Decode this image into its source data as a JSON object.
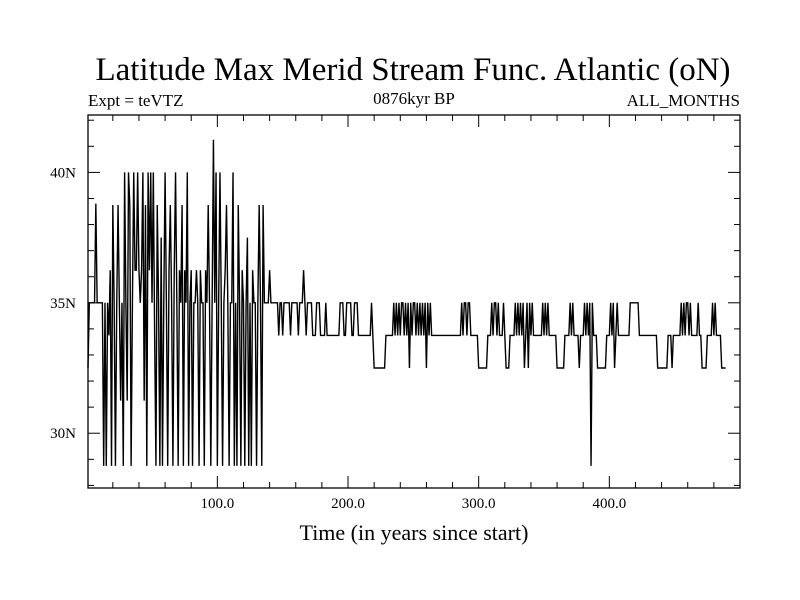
{
  "chart_data": {
    "type": "line",
    "title": "Latitude Max Merid Stream Func. Atlantic (oN)",
    "subtitle_left": "Expt = teVTZ",
    "subtitle_center": "0876kyr BP",
    "subtitle_right": "ALL_MONTHS",
    "xlabel": "Time (in years since start)",
    "ylabel": "",
    "xlim": [
      1,
      500
    ],
    "ylim": [
      27.9,
      42.2
    ],
    "x_ticks": [
      {
        "value": 100,
        "label": "100.0"
      },
      {
        "value": 200,
        "label": "200.0"
      },
      {
        "value": 300,
        "label": "300.0"
      },
      {
        "value": 400,
        "label": "400.0"
      }
    ],
    "y_ticks": [
      {
        "value": 30,
        "label": "30N"
      },
      {
        "value": 35,
        "label": "35N"
      },
      {
        "value": 40,
        "label": "40N"
      }
    ],
    "grid": false,
    "legend": "none",
    "colors": {
      "line": "#000000",
      "axes": "#000000",
      "background": "#ffffff"
    },
    "series": [
      {
        "values": [
          32.5,
          35.0,
          35.0,
          35.0,
          35.0,
          35.0,
          38.8,
          35.0,
          35.0,
          35.0,
          35.0,
          35.0,
          28.75,
          35.0,
          28.75,
          35.0,
          33.75,
          36.25,
          28.75,
          38.75,
          35.0,
          28.75,
          35.0,
          38.75,
          35.0,
          31.25,
          35.0,
          28.75,
          40.0,
          35.0,
          31.25,
          40.0,
          38.75,
          28.75,
          35.0,
          40.0,
          36.25,
          36.25,
          40.0,
          36.25,
          35.0,
          36.25,
          40.0,
          31.25,
          38.75,
          28.75,
          40.0,
          36.25,
          40.0,
          35.0,
          40.0,
          33.75,
          28.75,
          38.75,
          35.0,
          28.75,
          37.5,
          28.75,
          35.0,
          40.0,
          35.0,
          28.75,
          36.25,
          38.75,
          35.0,
          28.75,
          36.25,
          40.0,
          35.0,
          28.75,
          36.25,
          35.0,
          38.75,
          28.75,
          36.25,
          35.0,
          40.0,
          28.75,
          35.0,
          36.25,
          28.75,
          35.0,
          35.0,
          36.25,
          35.0,
          28.75,
          36.25,
          35.0,
          35.0,
          28.75,
          36.25,
          35.0,
          38.75,
          35.0,
          28.75,
          35.0,
          41.25,
          35.0,
          40.0,
          28.75,
          35.0,
          40.0,
          35.0,
          28.75,
          35.0,
          36.25,
          38.75,
          35.0,
          28.75,
          35.0,
          35.0,
          40.0,
          28.75,
          35.0,
          28.75,
          38.75,
          35.0,
          28.75,
          36.25,
          35.0,
          28.75,
          35.0,
          37.5,
          28.75,
          35.0,
          28.75,
          36.25,
          35.0,
          35.0,
          28.75,
          35.0,
          38.75,
          35.0,
          28.75,
          38.75,
          35.0,
          35.0,
          35.0,
          35.0,
          36.25,
          35.0,
          35.0,
          35.0,
          35.0,
          35.0,
          35.0,
          33.75,
          35.0,
          35.0,
          33.75,
          35.0,
          35.0,
          35.0,
          35.0,
          35.0,
          33.75,
          35.0,
          35.0,
          35.0,
          35.0,
          35.0,
          33.75,
          35.0,
          35.0,
          35.0,
          36.25,
          35.0,
          33.75,
          35.0,
          35.0,
          35.0,
          35.0,
          33.75,
          33.75,
          33.75,
          35.0,
          35.0,
          35.0,
          33.75,
          33.75,
          33.75,
          33.75,
          35.0,
          33.75,
          33.75,
          33.75,
          33.75,
          33.75,
          33.75,
          33.75,
          33.75,
          33.75,
          33.75,
          35.0,
          35.0,
          35.0,
          33.75,
          33.75,
          35.0,
          35.0,
          35.0,
          35.0,
          33.75,
          33.75,
          35.0,
          35.0,
          35.0,
          33.75,
          33.75,
          33.75,
          33.75,
          33.75,
          33.75,
          33.75,
          33.75,
          33.75,
          33.75,
          35.0,
          33.75,
          32.5,
          32.5,
          32.5,
          32.5,
          32.5,
          32.5,
          32.5,
          32.5,
          32.5,
          33.75,
          33.75,
          33.75,
          33.75,
          33.75,
          33.75,
          35.0,
          33.75,
          35.0,
          33.75,
          35.0,
          33.75,
          35.0,
          35.0,
          33.75,
          35.0,
          33.75,
          35.0,
          32.5,
          35.0,
          33.75,
          35.0,
          35.0,
          33.75,
          35.0,
          33.75,
          35.0,
          33.75,
          35.0,
          33.75,
          35.0,
          32.5,
          35.0,
          33.75,
          35.0,
          33.75,
          33.75,
          33.75,
          33.75,
          33.75,
          33.75,
          33.75,
          33.75,
          33.75,
          33.75,
          33.75,
          33.75,
          33.75,
          33.75,
          33.75,
          33.75,
          33.75,
          33.75,
          33.75,
          33.75,
          33.75,
          33.75,
          33.75,
          35.0,
          33.75,
          35.0,
          35.0,
          33.75,
          35.0,
          35.0,
          33.75,
          33.75,
          33.75,
          33.75,
          33.75,
          33.75,
          32.5,
          32.5,
          32.5,
          32.5,
          32.5,
          32.5,
          32.5,
          33.75,
          33.75,
          33.75,
          35.0,
          33.75,
          35.0,
          35.0,
          33.75,
          35.0,
          33.75,
          33.75,
          33.75,
          35.0,
          33.75,
          32.5,
          32.5,
          32.5,
          33.75,
          33.75,
          33.75,
          33.75,
          35.0,
          33.75,
          35.0,
          33.75,
          35.0,
          33.75,
          35.0,
          32.5,
          33.75,
          35.0,
          32.5,
          35.0,
          33.75,
          35.0,
          33.75,
          33.75,
          33.75,
          33.75,
          33.75,
          33.75,
          33.75,
          35.0,
          33.75,
          35.0,
          33.75,
          35.0,
          33.75,
          33.75,
          33.75,
          33.75,
          33.75,
          33.75,
          32.5,
          32.5,
          32.5,
          32.5,
          32.5,
          32.5,
          33.75,
          33.75,
          33.75,
          33.75,
          35.0,
          33.75,
          35.0,
          33.75,
          33.75,
          33.75,
          33.75,
          32.5,
          33.75,
          33.75,
          33.75,
          35.0,
          33.75,
          35.0,
          33.75,
          35.0,
          28.75,
          35.0,
          33.75,
          33.75,
          33.75,
          32.5,
          32.5,
          32.5,
          32.5,
          32.5,
          32.5,
          32.5,
          33.75,
          33.75,
          33.75,
          35.0,
          33.75,
          35.0,
          32.5,
          33.75,
          35.0,
          33.75,
          33.75,
          33.75,
          33.75,
          33.75,
          33.75,
          33.75,
          33.75,
          33.75,
          35.0,
          35.0,
          35.0,
          35.0,
          35.0,
          35.0,
          35.0,
          33.75,
          33.75,
          33.75,
          33.75,
          33.75,
          33.75,
          33.75,
          33.75,
          33.75,
          33.75,
          33.75,
          33.75,
          33.75,
          33.75,
          32.5,
          32.5,
          32.5,
          32.5,
          32.5,
          32.5,
          32.5,
          32.5,
          33.75,
          33.75,
          33.75,
          32.5,
          33.75,
          33.75,
          33.75,
          33.75,
          33.75,
          33.75,
          35.0,
          33.75,
          35.0,
          33.75,
          35.0,
          35.0,
          33.75,
          35.0,
          33.75,
          33.75,
          33.75,
          33.75,
          33.75,
          35.0,
          33.75,
          33.75,
          32.5,
          32.5,
          32.5,
          32.5,
          33.75,
          33.75,
          33.75,
          33.75,
          35.0,
          33.75,
          35.0,
          33.75,
          33.75,
          33.75,
          33.75,
          32.5,
          32.5,
          32.5,
          32.5
        ]
      }
    ]
  }
}
